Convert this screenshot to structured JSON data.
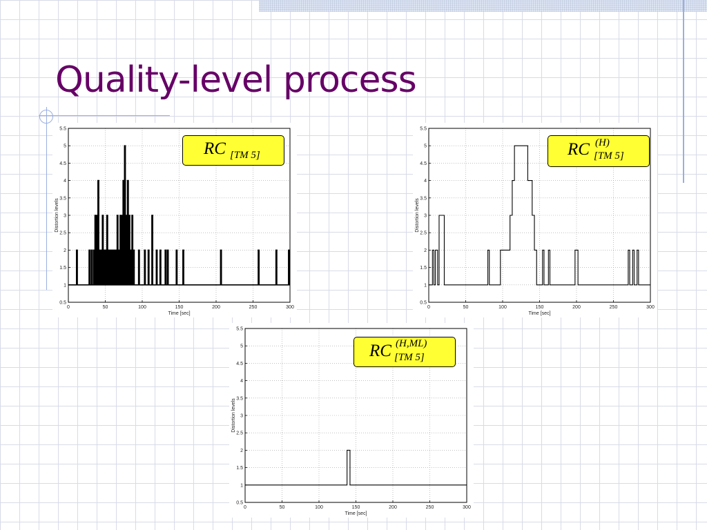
{
  "slide": {
    "title": "Quality-level process"
  },
  "theme": {
    "title_color": "#660066",
    "label_box_color": "#ffff33",
    "grid_color": "#d7dbe8"
  },
  "chart_data": [
    {
      "type": "line",
      "step": true,
      "label": {
        "base": "RC",
        "superscript": "",
        "subscript": "[TM 5]"
      },
      "xlabel": "Time [sec]",
      "ylabel": "Distortion levels",
      "xlim": [
        0,
        300
      ],
      "ylim": [
        0.5,
        5.5
      ],
      "xticks": [
        0,
        50,
        100,
        150,
        200,
        250,
        300
      ],
      "yticks": [
        0.5,
        1,
        1.5,
        2,
        2.5,
        3,
        3.5,
        4,
        4.5,
        5,
        5.5
      ],
      "grid": true,
      "baseline": 1,
      "series": [
        {
          "pulses": [
            {
              "x": 11,
              "y": 2
            },
            {
              "x": 28,
              "y": 2
            },
            {
              "x": 31,
              "y": 2
            },
            {
              "x": 34,
              "y": 2
            },
            {
              "x": 36,
              "y": 3
            },
            {
              "x": 38,
              "y": 3
            },
            {
              "x": 40,
              "y": 4
            },
            {
              "x": 42,
              "y": 2
            },
            {
              "x": 44,
              "y": 2
            },
            {
              "x": 46,
              "y": 3
            },
            {
              "x": 48,
              "y": 2
            },
            {
              "x": 50,
              "y": 2
            },
            {
              "x": 52,
              "y": 3
            },
            {
              "x": 54,
              "y": 2
            },
            {
              "x": 56,
              "y": 2
            },
            {
              "x": 58,
              "y": 2
            },
            {
              "x": 60,
              "y": 2
            },
            {
              "x": 62,
              "y": 2
            },
            {
              "x": 64,
              "y": 2
            },
            {
              "x": 66,
              "y": 3
            },
            {
              "x": 68,
              "y": 2
            },
            {
              "x": 70,
              "y": 3
            },
            {
              "x": 72,
              "y": 3
            },
            {
              "x": 74,
              "y": 4
            },
            {
              "x": 76,
              "y": 5
            },
            {
              "x": 78,
              "y": 3
            },
            {
              "x": 80,
              "y": 4
            },
            {
              "x": 82,
              "y": 3
            },
            {
              "x": 84,
              "y": 2
            },
            {
              "x": 86,
              "y": 3
            },
            {
              "x": 88,
              "y": 2
            },
            {
              "x": 95,
              "y": 2
            },
            {
              "x": 103,
              "y": 2
            },
            {
              "x": 108,
              "y": 2
            },
            {
              "x": 113,
              "y": 3
            },
            {
              "x": 119,
              "y": 2
            },
            {
              "x": 124,
              "y": 2
            },
            {
              "x": 131,
              "y": 2
            },
            {
              "x": 134,
              "y": 2
            },
            {
              "x": 146,
              "y": 2
            },
            {
              "x": 155,
              "y": 2
            },
            {
              "x": 206,
              "y": 2
            },
            {
              "x": 257,
              "y": 2
            },
            {
              "x": 281,
              "y": 2
            },
            {
              "x": 298,
              "y": 2
            }
          ],
          "pulse_width": 1.2
        }
      ]
    },
    {
      "type": "line",
      "step": true,
      "label": {
        "base": "RC",
        "superscript": "(H)",
        "subscript": "[TM 5]"
      },
      "xlabel": "Time [sec]",
      "ylabel": "Distortion levels",
      "xlim": [
        0,
        300
      ],
      "ylim": [
        0.5,
        5.5
      ],
      "xticks": [
        0,
        50,
        100,
        150,
        200,
        250,
        300
      ],
      "yticks": [
        0.5,
        1,
        1.5,
        2,
        2.5,
        3,
        3.5,
        4,
        4.5,
        5,
        5.5
      ],
      "grid": true,
      "series": [
        {
          "x": [
            0,
            5,
            7,
            9,
            12,
            14,
            16,
            21,
            23,
            80,
            82,
            97,
            107,
            110,
            113,
            116,
            134,
            137,
            140,
            143,
            146,
            154,
            156,
            162,
            164,
            198,
            202,
            204,
            255,
            270,
            272,
            276,
            278,
            282,
            284,
            300
          ],
          "y": [
            1,
            2,
            1,
            2,
            1,
            3,
            3,
            1,
            1,
            2,
            1,
            2,
            2,
            3,
            4,
            5,
            4,
            4,
            3,
            2,
            1,
            2,
            1,
            2,
            1,
            2,
            1,
            1,
            1,
            2,
            1,
            2,
            1,
            2,
            1,
            1
          ]
        }
      ]
    },
    {
      "type": "line",
      "step": true,
      "label": {
        "base": "RC",
        "superscript": "(H,ML)",
        "subscript": "[TM 5]"
      },
      "xlabel": "Time [sec]",
      "ylabel": "Distortion levels",
      "xlim": [
        0,
        300
      ],
      "ylim": [
        0.5,
        5.5
      ],
      "xticks": [
        0,
        50,
        100,
        150,
        200,
        250,
        300
      ],
      "yticks": [
        0.5,
        1,
        1.5,
        2,
        2.5,
        3,
        3.5,
        4,
        4.5,
        5,
        5.5
      ],
      "grid": true,
      "series": [
        {
          "x": [
            0,
            138,
            142,
            300
          ],
          "y": [
            1,
            2,
            1,
            1
          ]
        }
      ]
    }
  ]
}
